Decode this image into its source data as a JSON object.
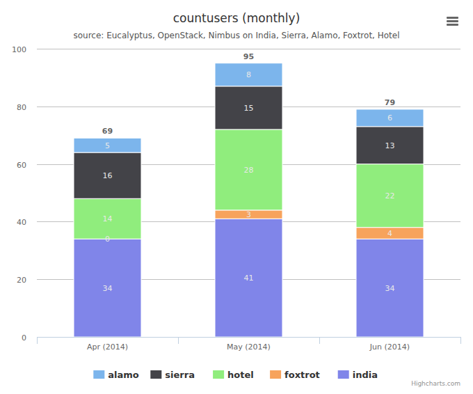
{
  "chart_data": {
    "type": "bar",
    "stacked": true,
    "data_labels": true,
    "grid": true,
    "legend": "bottom",
    "title": "countusers (monthly)",
    "subtitle": "source: Eucalyptus, OpenStack, Nimbus on India, Sierra, Alamo, Foxtrot, Hotel",
    "credits": "Highcharts.com",
    "categories": [
      "Apr (2014)",
      "May (2014)",
      "Jun (2014)"
    ],
    "series": [
      {
        "name": "alamo",
        "color": "#7cb5ec",
        "values": [
          5,
          8,
          6
        ]
      },
      {
        "name": "sierra",
        "color": "#434348",
        "values": [
          16,
          15,
          13
        ]
      },
      {
        "name": "hotel",
        "color": "#90ed7d",
        "values": [
          14,
          28,
          22
        ]
      },
      {
        "name": "foxtrot",
        "color": "#f7a35c",
        "values": [
          0,
          3,
          4
        ]
      },
      {
        "name": "india",
        "color": "#8085e9",
        "values": [
          34,
          41,
          34
        ]
      }
    ],
    "totals": [
      69,
      95,
      79
    ],
    "ylim": [
      0,
      100
    ],
    "yticks": [
      0,
      20,
      40,
      60,
      80,
      100
    ]
  }
}
